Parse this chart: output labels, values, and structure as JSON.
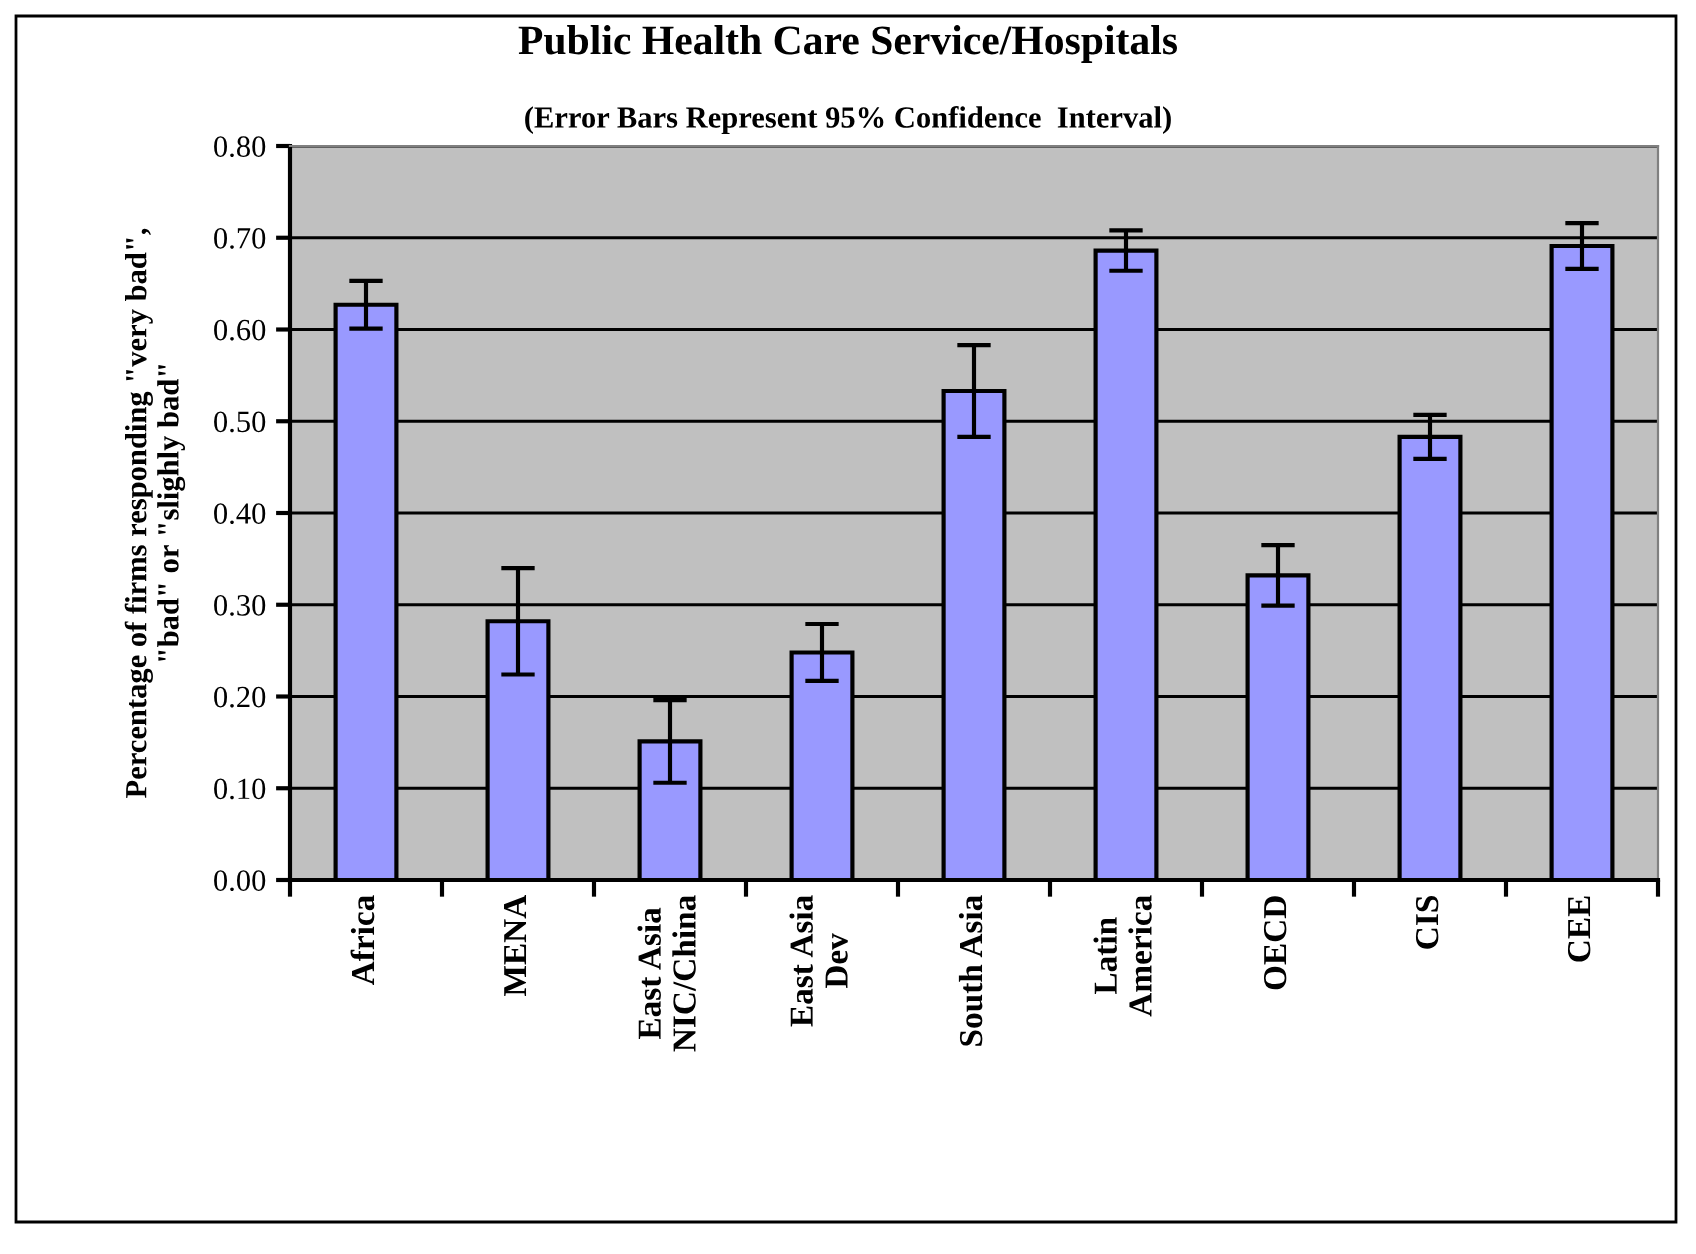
{
  "chart_data": {
    "type": "bar",
    "title": "Public Health Care Service/Hospitals",
    "subtitle": "(Error Bars Represent 95% Confidence  Interval)",
    "ylabel": "Percentage of firms responding \"very bad\",\n\"bad\" or \"slighly bad\"",
    "categories": [
      "Africa",
      "MENA",
      "East Asia\nNIC/China",
      "East Asia\nDev",
      "South Asia",
      "Latin\nAmerica",
      "OECD",
      "CIS",
      "CEE"
    ],
    "values": [
      0.627,
      0.282,
      0.151,
      0.248,
      0.533,
      0.686,
      0.332,
      0.483,
      0.691
    ],
    "errors": [
      0.026,
      0.058,
      0.045,
      0.031,
      0.05,
      0.022,
      0.033,
      0.024,
      0.025
    ],
    "color": "#9999ff",
    "ylim": [
      0,
      0.8
    ],
    "yticks": [
      {
        "value": 0,
        "label": "0.00"
      },
      {
        "value": 0.1,
        "label": "0.10"
      },
      {
        "value": 0.2,
        "label": "0.20"
      },
      {
        "value": 0.3,
        "label": "0.30"
      },
      {
        "value": 0.4,
        "label": "0.40"
      },
      {
        "value": 0.5,
        "label": "0.50"
      },
      {
        "value": 0.6,
        "label": "0.60"
      },
      {
        "value": 0.7,
        "label": "0.70"
      },
      {
        "value": 0.8,
        "label": "0.80"
      }
    ],
    "grid": "y"
  }
}
